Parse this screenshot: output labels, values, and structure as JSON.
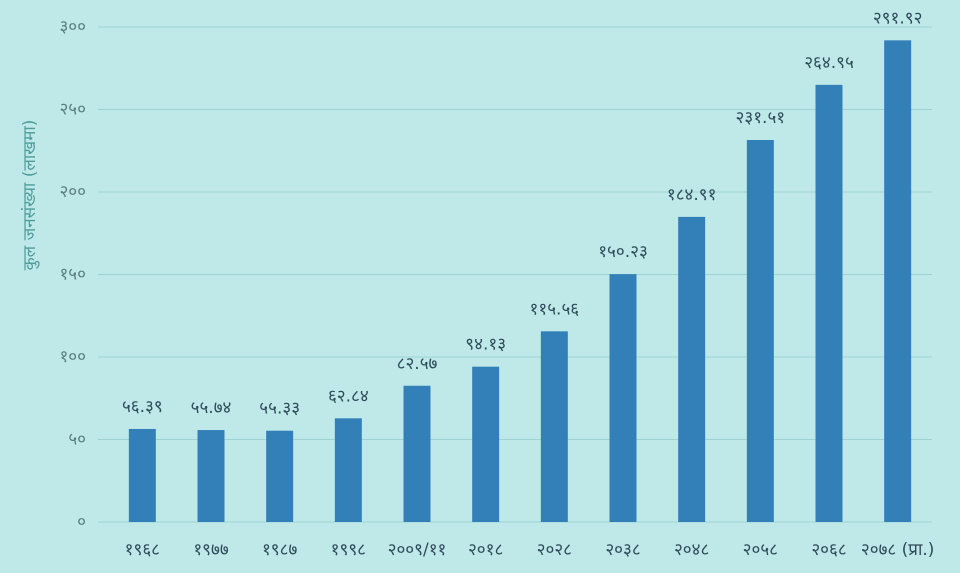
{
  "chart_data": {
    "type": "bar",
    "y_label": "कुल जनसंख्या (लाखमा)",
    "categories": [
      "१९६८",
      "१९७७",
      "१९८७",
      "१९९८",
      "२००९/११",
      "२०१८",
      "२०२८",
      "२०३८",
      "२०४८",
      "२०५८",
      "२०६८",
      "२०७८ (प्रा.)"
    ],
    "values": [
      56.39,
      55.74,
      55.33,
      62.84,
      82.57,
      94.13,
      115.56,
      150.23,
      184.91,
      231.51,
      264.95,
      291.92
    ],
    "value_labels": [
      "५६.३९",
      "५५.७४",
      "५५.३३",
      "६२.८४",
      "८२.५७",
      "९४.१३",
      "११५.५६",
      "१५०.२३",
      "१८४.९१",
      "२३१.५१",
      "२६४.९५",
      "२९१.९२"
    ],
    "color": "#3380b8",
    "ylim": [
      0,
      300
    ],
    "yticks": [
      {
        "value": 0,
        "label": "०"
      },
      {
        "value": 50,
        "label": "५०"
      },
      {
        "value": 100,
        "label": "१००"
      },
      {
        "value": 150,
        "label": "१५०"
      },
      {
        "value": 200,
        "label": "२००"
      },
      {
        "value": 250,
        "label": "२५०"
      },
      {
        "value": 300,
        "label": "३००"
      }
    ],
    "grid": true
  }
}
